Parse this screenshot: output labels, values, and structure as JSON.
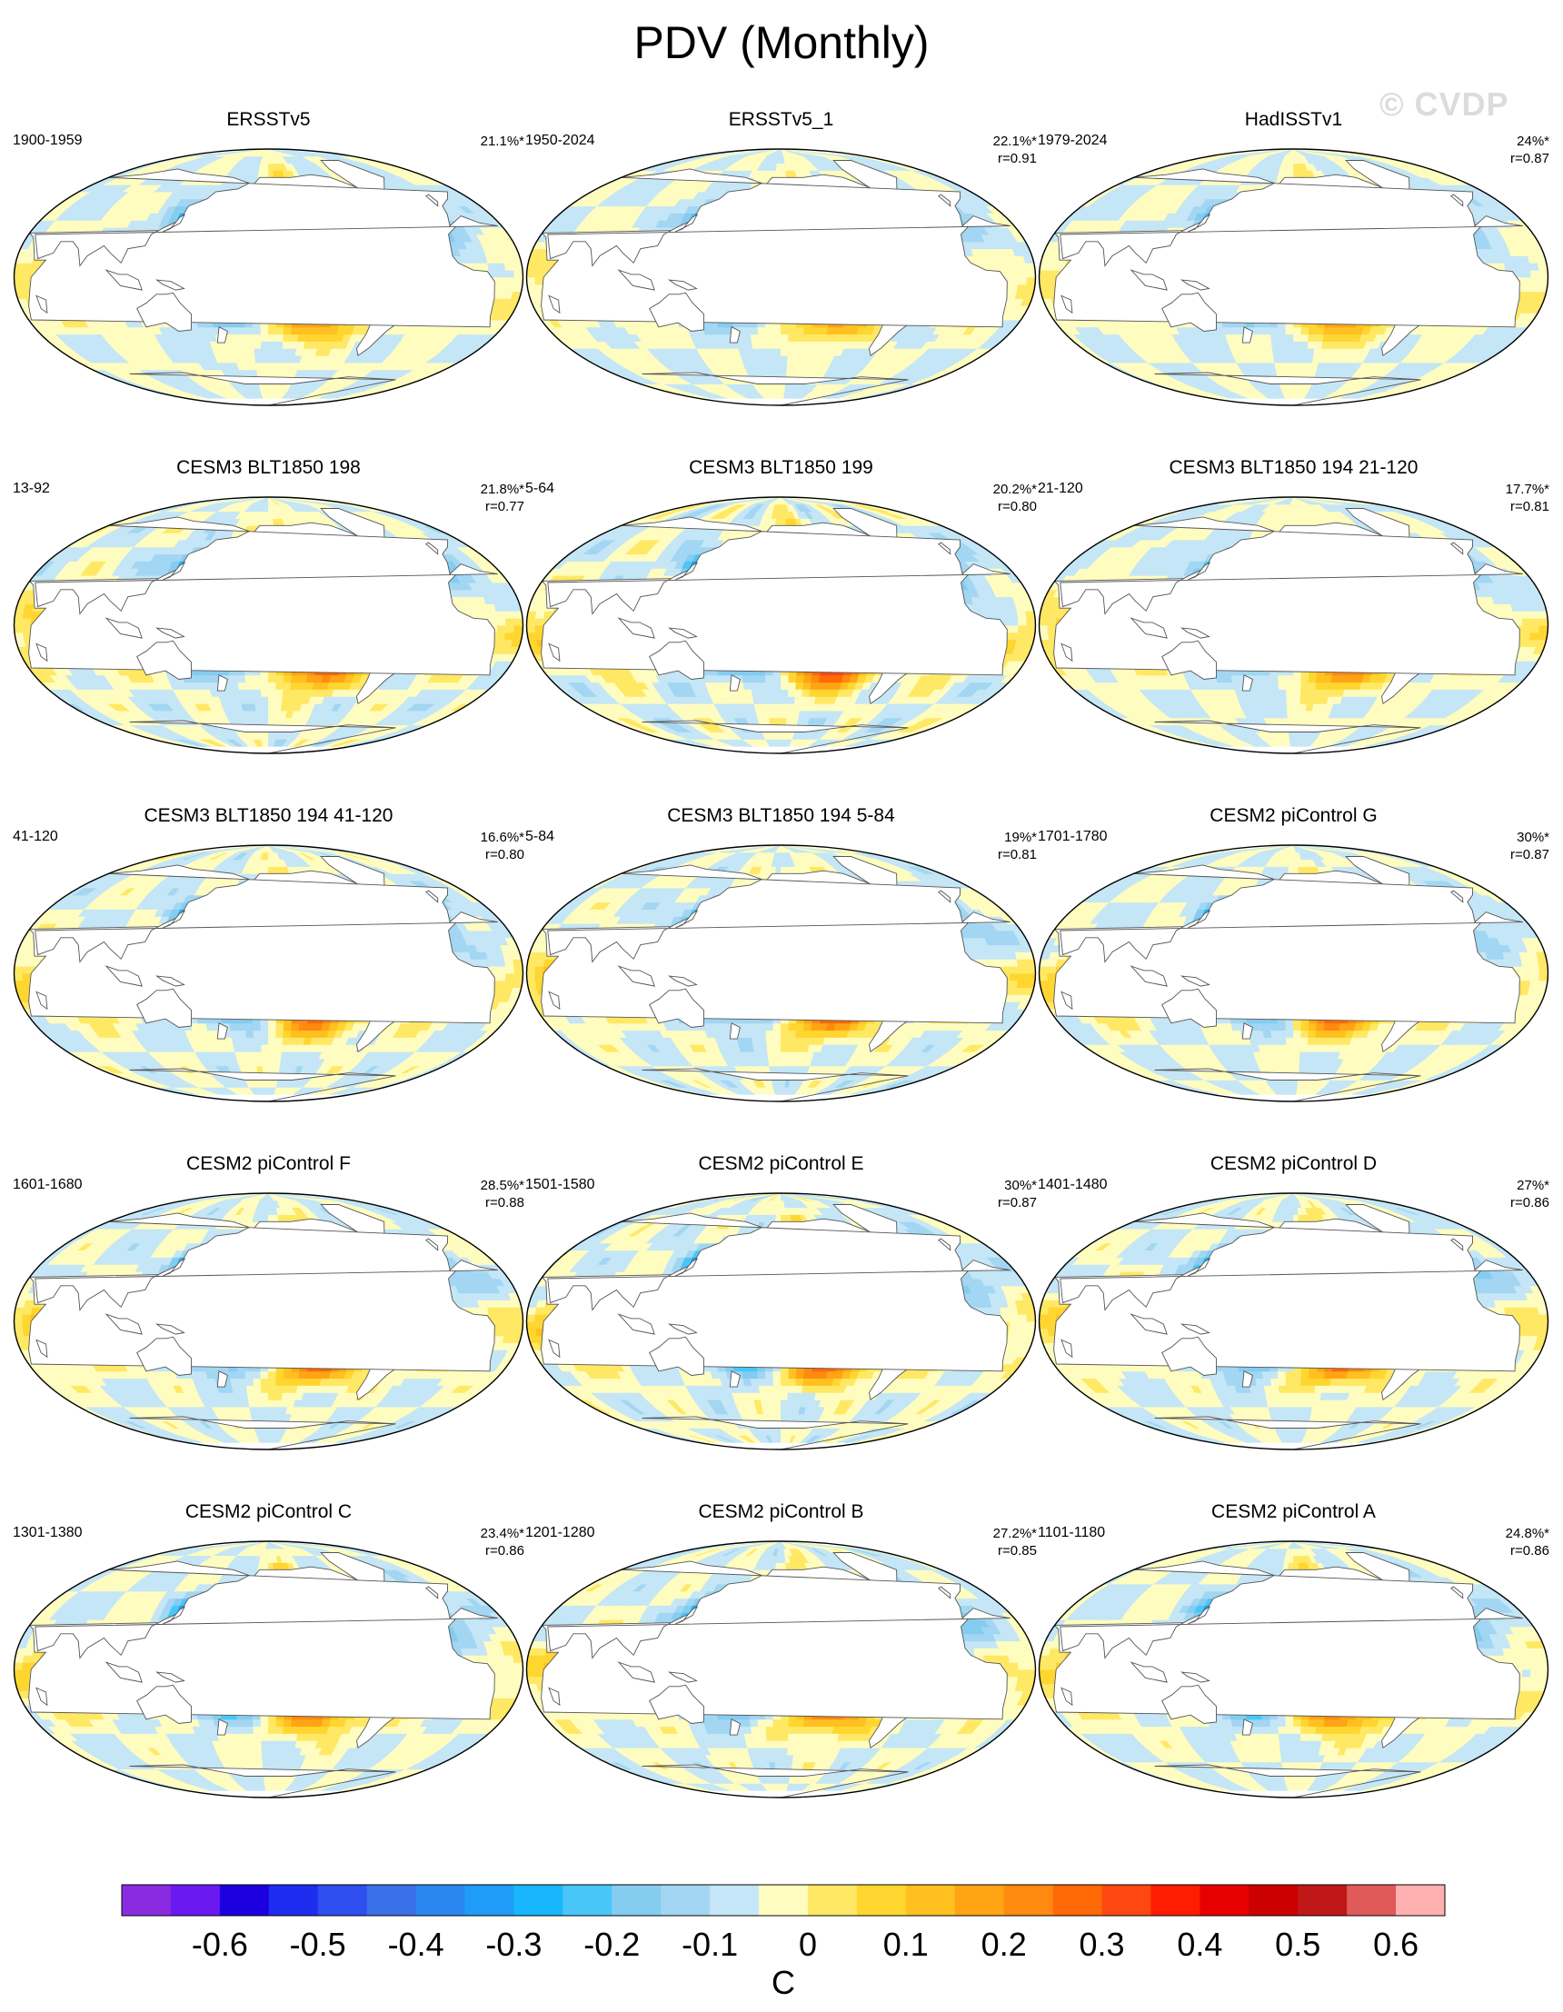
{
  "title": "PDV (Monthly)",
  "watermark": "© CVDP",
  "colorbar": {
    "unit": "C",
    "tick_labels": [
      "-0.6",
      "-0.5",
      "-0.4",
      "-0.3",
      "-0.2",
      "-0.1",
      "0",
      "0.1",
      "0.2",
      "0.3",
      "0.4",
      "0.5",
      "0.6"
    ],
    "colors": [
      "#8a2be2",
      "#6a1af0",
      "#1c00e0",
      "#1e2cf0",
      "#2e4ef0",
      "#3a70ea",
      "#2a86f0",
      "#1e9cf6",
      "#18b6fa",
      "#48c6f8",
      "#84ccf0",
      "#a2d6f2",
      "#c4e6f6",
      "#fffcc0",
      "#ffe864",
      "#ffd630",
      "#ffc020",
      "#ffa414",
      "#ff8a10",
      "#ff6a06",
      "#ff4810",
      "#ff1c00",
      "#e80000",
      "#cc0000",
      "#c01818",
      "#e05a5a",
      "#ffb0b0"
    ]
  },
  "panels": [
    {
      "title": "ERSSTv5",
      "period": "1900-1959",
      "pct": "21.1%*",
      "r": "",
      "amp": 0.85,
      "shift": 0
    },
    {
      "title": "ERSSTv5_1",
      "period": "1950-2024",
      "pct": "22.1%*",
      "r": "r=0.91",
      "amp": 0.8,
      "shift": 1
    },
    {
      "title": "HadISSTv1",
      "period": "1979-2024",
      "pct": "24%*",
      "r": "r=0.87",
      "amp": 0.8,
      "shift": 2
    },
    {
      "title": "CESM3 BLT1850 198",
      "period": "13-92",
      "pct": "21.8%*",
      "r": "r=0.77",
      "amp": 1.15,
      "shift": 3
    },
    {
      "title": "CESM3 BLT1850 199",
      "period": "5-64",
      "pct": "20.2%*",
      "r": "r=0.80",
      "amp": 1.3,
      "shift": 4
    },
    {
      "title": "CESM3 BLT1850 194 21-120",
      "period": "21-120",
      "pct": "17.7%*",
      "r": "r=0.81",
      "amp": 1.0,
      "shift": 5
    },
    {
      "title": "CESM3 BLT1850 194 41-120",
      "period": "41-120",
      "pct": "16.6%*",
      "r": "r=0.80",
      "amp": 1.05,
      "shift": 6
    },
    {
      "title": "CESM3 BLT1850 194 5-84",
      "period": "5-84",
      "pct": "19%*",
      "r": "r=0.81",
      "amp": 1.1,
      "shift": 7
    },
    {
      "title": "CESM2 piControl G",
      "period": "1701-1780",
      "pct": "30%*",
      "r": "r=0.87",
      "amp": 1.0,
      "shift": 8
    },
    {
      "title": "CESM2 piControl F",
      "period": "1601-1680",
      "pct": "28.5%*",
      "r": "r=0.88",
      "amp": 1.05,
      "shift": 9
    },
    {
      "title": "CESM2 piControl E",
      "period": "1501-1580",
      "pct": "30%*",
      "r": "r=0.87",
      "amp": 1.1,
      "shift": 10
    },
    {
      "title": "CESM2 piControl D",
      "period": "1401-1480",
      "pct": "27%*",
      "r": "r=0.86",
      "amp": 1.05,
      "shift": 11
    },
    {
      "title": "CESM2 piControl C",
      "period": "1301-1380",
      "pct": "23.4%*",
      "r": "r=0.86",
      "amp": 1.0,
      "shift": 12
    },
    {
      "title": "CESM2 piControl B",
      "period": "1201-1280",
      "pct": "27.2%*",
      "r": "r=0.85",
      "amp": 1.05,
      "shift": 13
    },
    {
      "title": "CESM2 piControl A",
      "period": "1101-1180",
      "pct": "24.8%*",
      "r": "r=0.86",
      "amp": 1.0,
      "shift": 14
    }
  ]
}
